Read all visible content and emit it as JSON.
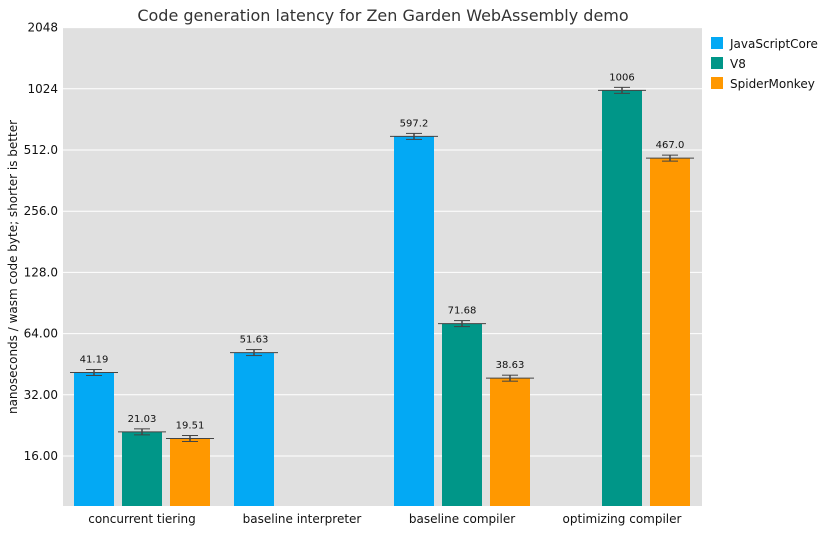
{
  "colors": {
    "plot_bg": "#e0e0e0",
    "grid": "#ffffff",
    "error_bar": "#444444"
  },
  "chart_data": {
    "type": "bar",
    "title": "Code generation latency for Zen Garden WebAssembly demo",
    "xlabel": "",
    "ylabel": "nanoseconds / wasm code byte; shorter is better",
    "y_scale": "log2",
    "ylim": [
      11,
      2048
    ],
    "y_ticks": [
      16,
      32,
      64,
      128,
      256,
      512,
      1024,
      2048
    ],
    "y_tick_labels": [
      "16.00",
      "32.00",
      "64.00",
      "128.0",
      "256.0",
      "512.0",
      "1024",
      "2048"
    ],
    "categories": [
      "concurrent tiering",
      "baseline interpreter",
      "baseline compiler",
      "optimizing compiler"
    ],
    "legend_position": "right",
    "series": [
      {
        "name": "JavaScriptCore",
        "color": "#03a9f4",
        "values": [
          41.19,
          51.63,
          597.2,
          null
        ],
        "labels": [
          "41.19",
          "51.63",
          "597.2",
          ""
        ]
      },
      {
        "name": "V8",
        "color": "#009688",
        "values": [
          21.03,
          null,
          71.68,
          1006
        ],
        "labels": [
          "21.03",
          "",
          "71.68",
          "1006"
        ]
      },
      {
        "name": "SpiderMonkey",
        "color": "#ff9800",
        "values": [
          19.51,
          null,
          38.63,
          467.0
        ],
        "labels": [
          "19.51",
          "",
          "38.63",
          "467.0"
        ]
      }
    ]
  }
}
